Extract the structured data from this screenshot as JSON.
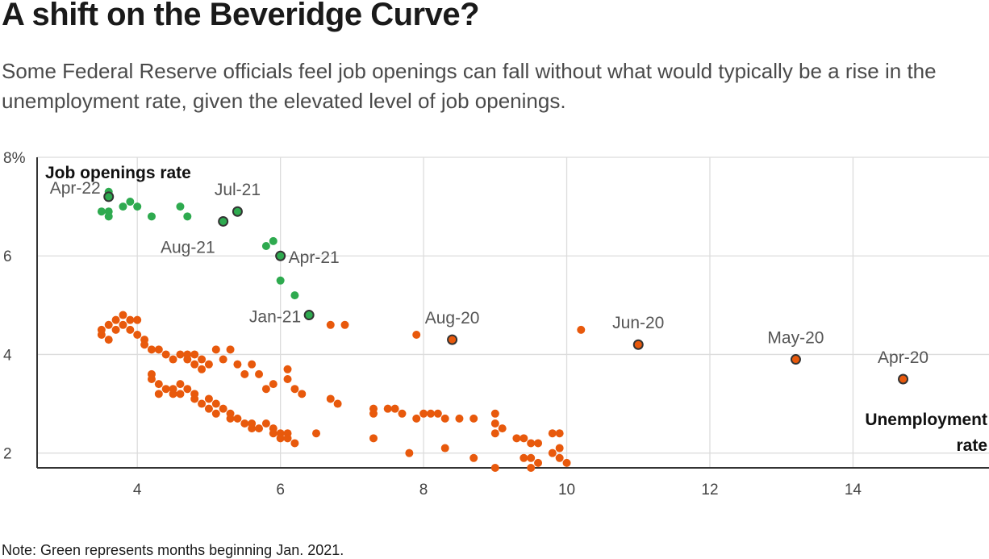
{
  "title": "A shift on the Beveridge Curve?",
  "subtitle": "Some Federal Reserve officials feel job openings can fall without what would typically be a rise in the unemployment rate, given the elevated level of job openings.",
  "note": "Note: Green represents months beginning Jan. 2021.",
  "chart_data": {
    "type": "scatter",
    "xlabel": "Unemployment rate",
    "ylabel": "Job openings rate",
    "xlim": [
      2.6,
      15.9
    ],
    "ylim": [
      1.7,
      8
    ],
    "x_ticks": [
      4,
      6,
      8,
      10,
      12,
      14
    ],
    "y_ticks": [
      2,
      4,
      6,
      8
    ],
    "y_tick_labels": [
      "2",
      "4",
      "6",
      "8%"
    ],
    "grid": true,
    "colors": {
      "green": "#2eaa4f",
      "orange": "#e8590c",
      "highlight_stroke": "#333333"
    },
    "series": [
      {
        "color": "green",
        "points": [
          [
            3.6,
            7.3
          ],
          [
            3.6,
            7.2
          ],
          [
            3.5,
            6.9
          ],
          [
            3.6,
            6.9
          ],
          [
            3.6,
            6.8
          ],
          [
            3.8,
            7.0
          ],
          [
            3.9,
            7.1
          ],
          [
            4.0,
            7.0
          ],
          [
            4.2,
            6.8
          ],
          [
            4.6,
            7.0
          ],
          [
            4.7,
            6.8
          ],
          [
            5.2,
            6.7
          ],
          [
            5.4,
            6.9
          ],
          [
            5.8,
            6.2
          ],
          [
            5.9,
            6.3
          ],
          [
            6.0,
            6.0
          ],
          [
            6.0,
            5.5
          ],
          [
            6.2,
            5.2
          ],
          [
            6.4,
            4.8
          ]
        ]
      },
      {
        "color": "orange",
        "points": [
          [
            3.5,
            4.5
          ],
          [
            3.5,
            4.4
          ],
          [
            3.6,
            4.3
          ],
          [
            3.6,
            4.6
          ],
          [
            3.7,
            4.7
          ],
          [
            3.7,
            4.5
          ],
          [
            3.8,
            4.8
          ],
          [
            3.8,
            4.6
          ],
          [
            3.9,
            4.7
          ],
          [
            3.9,
            4.5
          ],
          [
            4.0,
            4.7
          ],
          [
            4.0,
            4.4
          ],
          [
            4.1,
            4.3
          ],
          [
            4.1,
            4.2
          ],
          [
            4.2,
            4.1
          ],
          [
            4.3,
            4.1
          ],
          [
            4.4,
            4.0
          ],
          [
            4.5,
            3.9
          ],
          [
            4.6,
            4.0
          ],
          [
            4.7,
            3.9
          ],
          [
            4.7,
            4.0
          ],
          [
            4.8,
            3.8
          ],
          [
            4.8,
            4.0
          ],
          [
            4.9,
            3.7
          ],
          [
            4.9,
            3.9
          ],
          [
            5.0,
            3.8
          ],
          [
            5.1,
            4.1
          ],
          [
            5.2,
            3.9
          ],
          [
            5.3,
            4.1
          ],
          [
            4.2,
            3.6
          ],
          [
            4.2,
            3.5
          ],
          [
            4.3,
            3.4
          ],
          [
            4.3,
            3.2
          ],
          [
            4.4,
            3.3
          ],
          [
            4.5,
            3.3
          ],
          [
            4.5,
            3.2
          ],
          [
            4.6,
            3.4
          ],
          [
            4.6,
            3.2
          ],
          [
            4.7,
            3.3
          ],
          [
            4.8,
            3.2
          ],
          [
            4.8,
            3.1
          ],
          [
            4.9,
            3.0
          ],
          [
            5.0,
            3.1
          ],
          [
            5.0,
            2.9
          ],
          [
            5.1,
            3.0
          ],
          [
            5.1,
            2.8
          ],
          [
            5.2,
            2.9
          ],
          [
            5.3,
            2.8
          ],
          [
            5.3,
            2.7
          ],
          [
            5.4,
            2.7
          ],
          [
            5.5,
            2.6
          ],
          [
            5.6,
            2.5
          ],
          [
            5.6,
            2.6
          ],
          [
            5.7,
            2.5
          ],
          [
            5.8,
            2.6
          ],
          [
            5.9,
            2.5
          ],
          [
            5.9,
            2.4
          ],
          [
            6.0,
            2.4
          ],
          [
            6.0,
            2.3
          ],
          [
            6.1,
            2.4
          ],
          [
            6.1,
            2.3
          ],
          [
            6.2,
            2.2
          ],
          [
            5.4,
            3.8
          ],
          [
            5.5,
            3.6
          ],
          [
            5.6,
            3.8
          ],
          [
            5.7,
            3.6
          ],
          [
            5.8,
            3.3
          ],
          [
            5.9,
            3.4
          ],
          [
            6.1,
            3.7
          ],
          [
            6.1,
            3.5
          ],
          [
            6.2,
            3.3
          ],
          [
            6.3,
            3.2
          ],
          [
            6.5,
            2.4
          ],
          [
            6.7,
            3.1
          ],
          [
            6.8,
            3.0
          ],
          [
            6.7,
            4.6
          ],
          [
            6.9,
            4.6
          ],
          [
            7.3,
            2.9
          ],
          [
            7.3,
            2.8
          ],
          [
            7.5,
            2.9
          ],
          [
            7.6,
            2.9
          ],
          [
            7.7,
            2.8
          ],
          [
            7.9,
            2.7
          ],
          [
            8.0,
            2.8
          ],
          [
            8.1,
            2.8
          ],
          [
            8.2,
            2.8
          ],
          [
            8.3,
            2.7
          ],
          [
            8.5,
            2.7
          ],
          [
            8.7,
            2.7
          ],
          [
            9.0,
            2.8
          ],
          [
            9.0,
            2.6
          ],
          [
            9.0,
            2.4
          ],
          [
            9.1,
            2.5
          ],
          [
            9.3,
            2.3
          ],
          [
            9.4,
            2.3
          ],
          [
            9.5,
            2.2
          ],
          [
            9.6,
            2.2
          ],
          [
            9.8,
            2.4
          ],
          [
            9.9,
            2.4
          ],
          [
            9.9,
            2.1
          ],
          [
            9.8,
            2.0
          ],
          [
            9.9,
            1.9
          ],
          [
            10.0,
            1.8
          ],
          [
            9.4,
            1.9
          ],
          [
            9.5,
            1.9
          ],
          [
            9.6,
            1.8
          ],
          [
            9.5,
            1.7
          ],
          [
            9.0,
            1.7
          ],
          [
            8.7,
            1.9
          ],
          [
            7.8,
            2.0
          ],
          [
            8.3,
            2.1
          ],
          [
            7.3,
            2.3
          ],
          [
            7.9,
            4.4
          ],
          [
            10.2,
            4.5
          ],
          [
            8.4,
            4.3
          ],
          [
            11.0,
            4.2
          ],
          [
            13.2,
            3.9
          ],
          [
            14.7,
            3.5
          ]
        ]
      }
    ],
    "labeled_points": [
      {
        "label": "Apr-22",
        "x": 3.6,
        "y": 7.2,
        "color": "green"
      },
      {
        "label": "Jul-21",
        "x": 5.4,
        "y": 6.9,
        "color": "green"
      },
      {
        "label": "Aug-21",
        "x": 5.2,
        "y": 6.7,
        "color": "green"
      },
      {
        "label": "Apr-21",
        "x": 6.0,
        "y": 6.0,
        "color": "green"
      },
      {
        "label": "Jan-21",
        "x": 6.4,
        "y": 4.8,
        "color": "green"
      },
      {
        "label": "Aug-20",
        "x": 8.4,
        "y": 4.3,
        "color": "orange"
      },
      {
        "label": "Jun-20",
        "x": 11.0,
        "y": 4.2,
        "color": "orange"
      },
      {
        "label": "May-20",
        "x": 13.2,
        "y": 3.9,
        "color": "orange"
      },
      {
        "label": "Apr-20",
        "x": 14.7,
        "y": 3.5,
        "color": "orange"
      }
    ]
  }
}
